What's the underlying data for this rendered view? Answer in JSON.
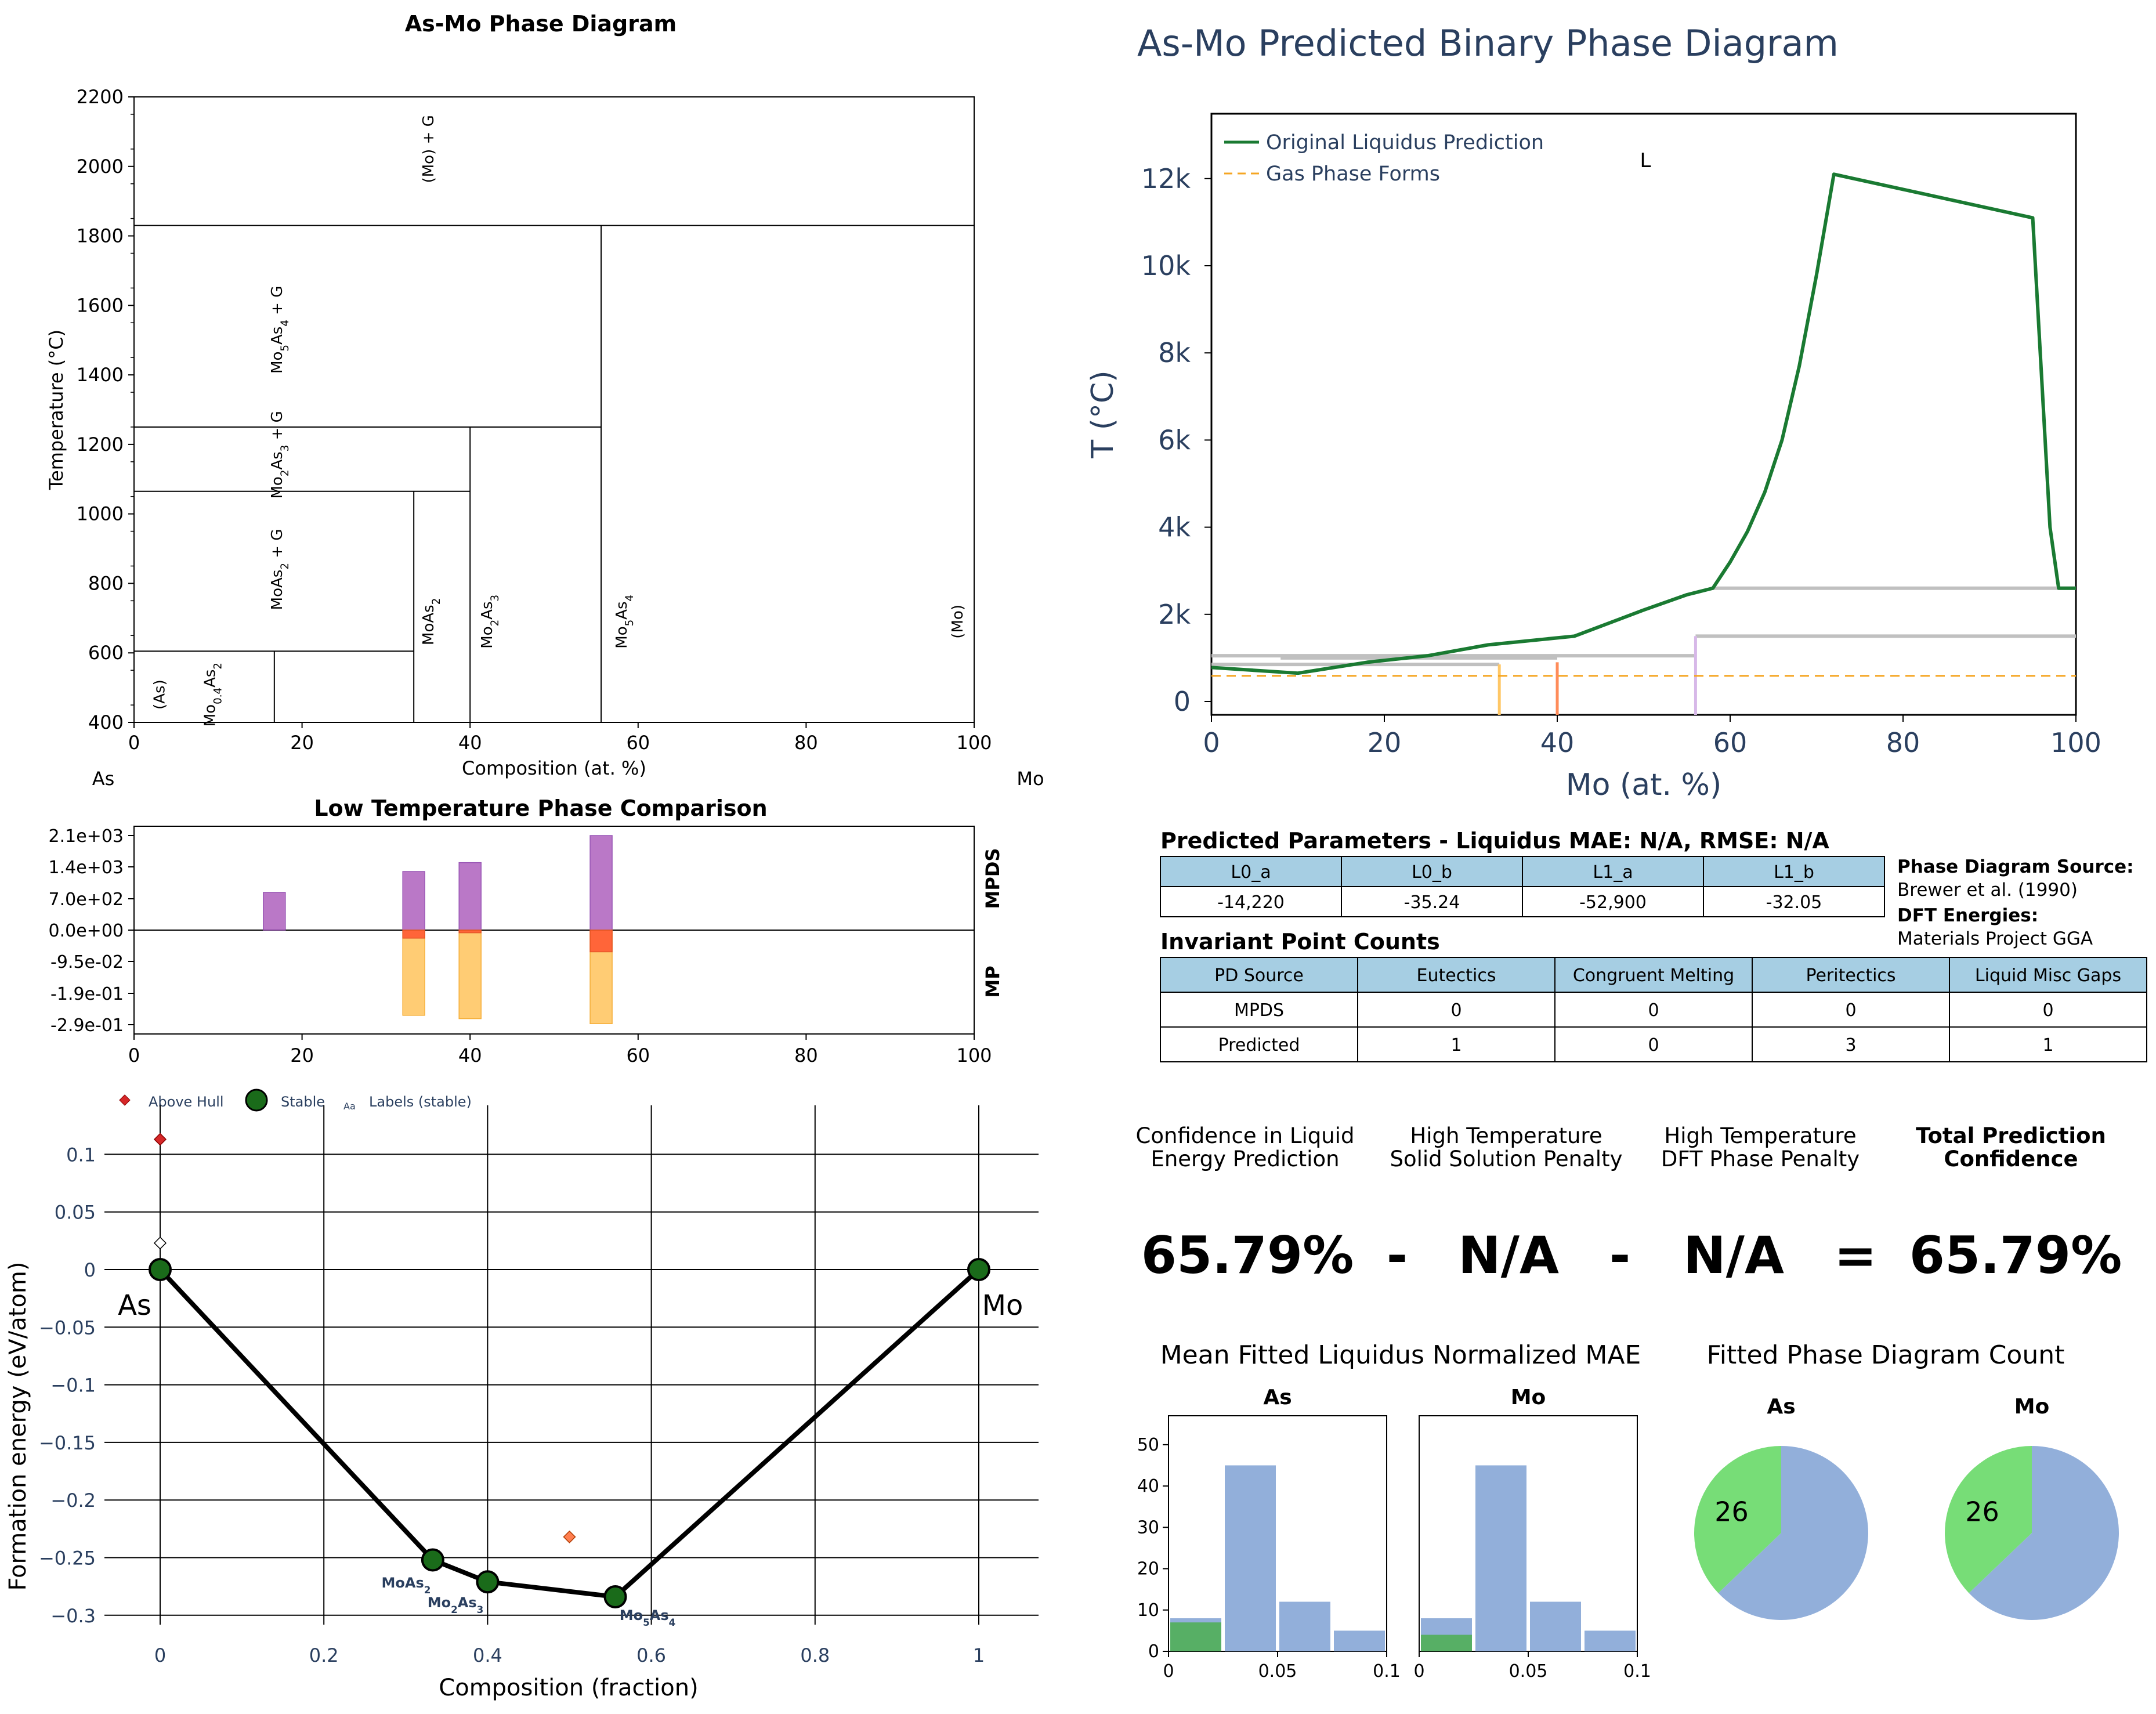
{
  "figure": {
    "colors": {
      "purple": "#b36ac2",
      "red": "#ff5a33",
      "orange": "#ffc766",
      "green_line": "#1a7a32",
      "gas_line": "#f5a623",
      "gray_line": "#c0c0c0",
      "tbl_head": "#a6cee3",
      "navy": "#2a3f5f",
      "bar_blue": "#92afda",
      "bar_green": "#4caf50",
      "pie_green": "#77dd77",
      "stable_green": "#1a6b1a"
    }
  },
  "phase_diagram": {
    "title": "As-Mo Phase Diagram",
    "xlabel": "Composition (at. %)",
    "ylabel": "Temperature (°C)",
    "left_element": "As",
    "right_element": "Mo",
    "xticks": [
      "0",
      "20",
      "40",
      "60",
      "80",
      "100"
    ],
    "yticks": [
      "400",
      "600",
      "800",
      "1000",
      "1200",
      "1400",
      "1600",
      "1800",
      "2000",
      "2200"
    ],
    "regions": [
      {
        "name": "(Mo) + G",
        "x": 35,
        "t": 2050
      },
      {
        "name": "Mo5As4 + G",
        "x": 17,
        "t": 1530
      },
      {
        "name": "Mo2As3 + G",
        "x": 17,
        "t": 1170
      },
      {
        "name": "MoAs2 + G",
        "x": 17,
        "t": 840
      },
      {
        "name": "(As)",
        "x": 3,
        "t": 480
      },
      {
        "name": "Mo0.4As2",
        "x": 9,
        "t": 480
      },
      {
        "name": "MoAs2",
        "x": 35,
        "t": 690
      },
      {
        "name": "Mo2As3",
        "x": 42,
        "t": 690
      },
      {
        "name": "Mo5As4",
        "x": 58,
        "t": 690
      },
      {
        "name": "(Mo)",
        "x": 98,
        "t": 690
      }
    ]
  },
  "comparison": {
    "title": "Low Temperature Phase Comparison",
    "label_top": "MPDS",
    "label_bottom": "MP",
    "yticks": [
      "2.1e+03",
      "1.4e+03",
      "7.0e+02",
      "0.0e+00",
      "-9.5e-02",
      "-1.9e-01",
      "-2.9e-01"
    ],
    "xticks": [
      "0",
      "20",
      "40",
      "60",
      "80",
      "100"
    ]
  },
  "hull": {
    "legend": [
      "Above Hull",
      "Stable",
      "Labels (stable)"
    ],
    "legend_small": "Aa",
    "xlabel": "Composition (fraction)",
    "ylabel": "Formation energy (eV/atom)",
    "xticks": [
      "0",
      "0.2",
      "0.4",
      "0.6",
      "0.8",
      "1"
    ],
    "yticks": [
      "0.1",
      "0.05",
      "0",
      "−0.05",
      "−0.1",
      "−0.15",
      "−0.2",
      "−0.25",
      "−0.3"
    ],
    "stable_labels": [
      "As",
      "Mo",
      "MoAs2",
      "Mo2As3",
      "Mo5As4"
    ]
  },
  "liquidus": {
    "title": "As-Mo Predicted Binary Phase Diagram",
    "xlabel": "Mo (at. %)",
    "ylabel": "T (°C)",
    "legend": [
      "Original Liquidus Prediction",
      "Gas Phase Forms"
    ],
    "region_label": "L",
    "xticks": [
      "0",
      "20",
      "40",
      "60",
      "80",
      "100"
    ],
    "yticks": [
      "0",
      "2k",
      "4k",
      "6k",
      "8k",
      "10k",
      "12k"
    ]
  },
  "params": {
    "title": "Predicted Parameters - Liquidus MAE: N/A, RMSE: N/A",
    "headers": [
      "L0_a",
      "L0_b",
      "L1_a",
      "L1_b"
    ],
    "values": [
      "-14,220",
      "-35.24",
      "-52,900",
      "-32.05"
    ]
  },
  "source": {
    "pd_label": "Phase Diagram Source:",
    "pd_value": "Brewer et al. (1990)",
    "dft_label": "DFT Energies:",
    "dft_value": "Materials Project GGA"
  },
  "invariants": {
    "title": "Invariant Point Counts",
    "headers": [
      "PD Source",
      "Eutectics",
      "Congruent Melting",
      "Peritectics",
      "Liquid Misc Gaps"
    ],
    "rows": [
      [
        "MPDS",
        "0",
        "0",
        "0",
        "0"
      ],
      [
        "Predicted",
        "1",
        "0",
        "3",
        "1"
      ]
    ]
  },
  "confidence": {
    "labels": [
      [
        "Confidence in Liquid",
        "Energy Prediction"
      ],
      [
        "High Temperature",
        "Solid Solution Penalty"
      ],
      [
        "High Temperature",
        "DFT Phase Penalty"
      ],
      [
        "Total Prediction",
        "Confidence"
      ]
    ],
    "values": [
      "65.79%",
      "N/A",
      "N/A",
      "65.79%"
    ],
    "operators": [
      "-",
      "-",
      "="
    ]
  },
  "mae": {
    "title": "Mean Fitted Liquidus Normalized MAE",
    "panels": [
      "As",
      "Mo"
    ],
    "yticks": [
      "0",
      "10",
      "20",
      "30",
      "40",
      "50"
    ],
    "xticks": [
      "0",
      "0.05",
      "0.1"
    ]
  },
  "pies": {
    "title": "Fitted Phase Diagram Count",
    "panels": [
      "As",
      "Mo"
    ],
    "labels": [
      "26",
      "26"
    ]
  },
  "chart_data": [
    {
      "type": "line",
      "title": "As-Mo Phase Diagram",
      "xlabel": "Composition (at. %)",
      "ylabel": "Temperature (°C)",
      "xlim": [
        0,
        100
      ],
      "ylim": [
        400,
        2200
      ],
      "boundaries": [
        {
          "x": [
            0,
            100
          ],
          "y": [
            1830,
            1830
          ]
        },
        {
          "x": [
            0,
            55.6
          ],
          "y": [
            1250,
            1250
          ]
        },
        {
          "x": [
            0,
            40
          ],
          "y": [
            1065,
            1065
          ]
        },
        {
          "x": [
            0,
            33.3
          ],
          "y": [
            605,
            605
          ]
        },
        {
          "x": [
            55.6,
            55.6
          ],
          "y": [
            400,
            1830
          ]
        },
        {
          "x": [
            40,
            40
          ],
          "y": [
            400,
            1250
          ]
        },
        {
          "x": [
            33.3,
            33.3
          ],
          "y": [
            400,
            1065
          ]
        },
        {
          "x": [
            16.7,
            16.7
          ],
          "y": [
            400,
            605
          ]
        }
      ]
    },
    {
      "type": "bar",
      "title": "Low Temperature Phase Comparison",
      "series": [
        {
          "name": "MPDS",
          "x": [
            16.7,
            33.3,
            40,
            55.6
          ],
          "values": [
            850,
            1320,
            1520,
            2130
          ]
        },
        {
          "name": "MP",
          "x": [
            33.3,
            40,
            55.6
          ],
          "values": [
            -0.255,
            -0.265,
            -0.28
          ]
        },
        {
          "x": [
            33.3,
            40,
            55.6
          ],
          "values": [
            -0.024,
            -0.008,
            -0.065
          ]
        }
      ],
      "xlim": [
        0,
        100
      ]
    },
    {
      "type": "scatter",
      "xlabel": "Composition (fraction)",
      "ylabel": "Formation energy (eV/atom)",
      "xlim": [
        -0.05,
        1.07
      ],
      "ylim": [
        -0.31,
        0.125
      ],
      "series": [
        {
          "name": "Stable",
          "points": [
            {
              "label": "As",
              "x": 0,
              "y": 0
            },
            {
              "label": "MoAs2",
              "x": 0.333,
              "y": -0.252
            },
            {
              "label": "Mo2As3",
              "x": 0.4,
              "y": -0.271
            },
            {
              "label": "Mo5As4",
              "x": 0.556,
              "y": -0.284
            },
            {
              "label": "Mo",
              "x": 1,
              "y": 0
            }
          ]
        },
        {
          "name": "Above Hull",
          "points": [
            {
              "x": 0,
              "y": 0.113
            },
            {
              "x": 0,
              "y": 0.023
            },
            {
              "x": 0.5,
              "y": -0.232
            }
          ]
        }
      ]
    },
    {
      "type": "line",
      "title": "As-Mo Predicted Binary Phase Diagram",
      "xlabel": "Mo (at. %)",
      "ylabel": "T (°C)",
      "xlim": [
        0,
        100
      ],
      "ylim": [
        -300,
        13500
      ],
      "series": [
        {
          "name": "Original Liquidus Prediction",
          "x": [
            0,
            10,
            18,
            25,
            32,
            42,
            50,
            55,
            58,
            60,
            62,
            64,
            66,
            68,
            70,
            72,
            95,
            97,
            98,
            100
          ],
          "y": [
            780,
            650,
            900,
            1050,
            1300,
            1500,
            2100,
            2450,
            2600,
            3200,
            3900,
            4800,
            6000,
            7700,
            9800,
            12100,
            11100,
            4000,
            2600,
            2600
          ]
        },
        {
          "name": "Gas Phase Forms",
          "x": [
            0,
            100
          ],
          "y": [
            590,
            590
          ]
        }
      ],
      "invariant_lines": [
        {
          "x": [
            0,
            33.3
          ],
          "y": [
            850,
            850
          ]
        },
        {
          "x": [
            8,
            40
          ],
          "y": [
            1000,
            1000
          ]
        },
        {
          "x": [
            0,
            56
          ],
          "y": [
            1050,
            1050
          ]
        },
        {
          "x": [
            56,
            100
          ],
          "y": [
            1500,
            1500
          ]
        },
        {
          "x": [
            58,
            100
          ],
          "y": [
            2600,
            2600
          ]
        }
      ],
      "compound_lines": [
        {
          "x": 33.3,
          "top": 850
        },
        {
          "x": 40,
          "top": 900
        },
        {
          "x": 56,
          "top": 1500
        }
      ]
    },
    {
      "type": "bar",
      "title": "Mean Fitted Liquidus Normalized MAE",
      "subplots": [
        {
          "name": "As",
          "bins": [
            0,
            0.025,
            0.05,
            0.075,
            0.1
          ],
          "total": [
            8,
            45,
            12,
            5
          ],
          "highlight": [
            7,
            0,
            0,
            0
          ]
        },
        {
          "name": "Mo",
          "bins": [
            0,
            0.025,
            0.05,
            0.075,
            0.1
          ],
          "total": [
            8,
            45,
            12,
            5
          ],
          "highlight": [
            4,
            0,
            0,
            0
          ]
        }
      ],
      "ylim": [
        0,
        57
      ]
    },
    {
      "type": "pie",
      "title": "Fitted Phase Diagram Count",
      "subplots": [
        {
          "name": "As",
          "slices": [
            26,
            44
          ]
        },
        {
          "name": "Mo",
          "slices": [
            26,
            44
          ]
        }
      ]
    }
  ]
}
